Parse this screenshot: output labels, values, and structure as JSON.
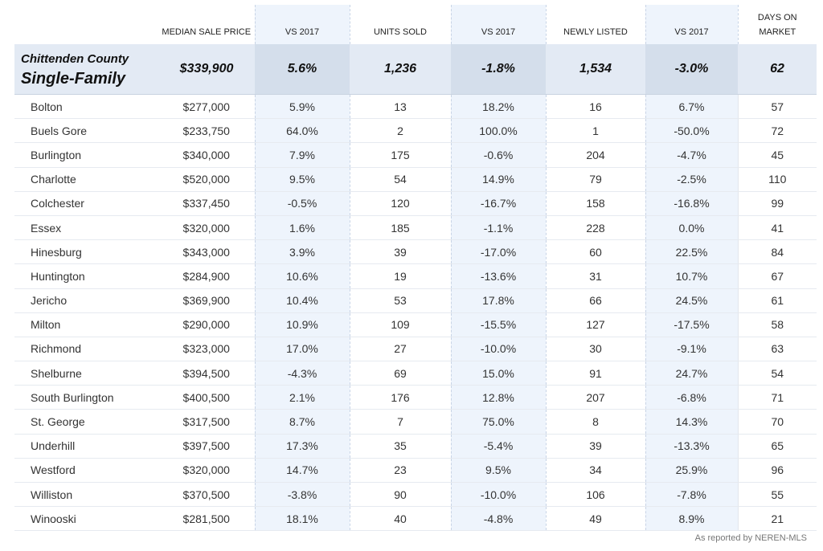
{
  "chart_data": {
    "type": "table",
    "columns": [
      "",
      "MEDIAN SALE PRICE",
      "VS 2017",
      "UNITS SOLD",
      "VS 2017",
      "NEWLY LISTED",
      "VS 2017",
      "DAYS ON MARKET"
    ],
    "total": {
      "county": "Chittenden County",
      "type": "Single-Family",
      "values": [
        "$339,900",
        "5.6%",
        "1,236",
        "-1.8%",
        "1,534",
        "-3.0%",
        "62"
      ]
    },
    "rows": [
      [
        "Bolton",
        "$277,000",
        "5.9%",
        "13",
        "18.2%",
        "16",
        "6.7%",
        "57"
      ],
      [
        "Buels Gore",
        "$233,750",
        "64.0%",
        "2",
        "100.0%",
        "1",
        "-50.0%",
        "72"
      ],
      [
        "Burlington",
        "$340,000",
        "7.9%",
        "175",
        "-0.6%",
        "204",
        "-4.7%",
        "45"
      ],
      [
        "Charlotte",
        "$520,000",
        "9.5%",
        "54",
        "14.9%",
        "79",
        "-2.5%",
        "110"
      ],
      [
        "Colchester",
        "$337,450",
        "-0.5%",
        "120",
        "-16.7%",
        "158",
        "-16.8%",
        "99"
      ],
      [
        "Essex",
        "$320,000",
        "1.6%",
        "185",
        "-1.1%",
        "228",
        "0.0%",
        "41"
      ],
      [
        "Hinesburg",
        "$343,000",
        "3.9%",
        "39",
        "-17.0%",
        "60",
        "22.5%",
        "84"
      ],
      [
        "Huntington",
        "$284,900",
        "10.6%",
        "19",
        "-13.6%",
        "31",
        "10.7%",
        "67"
      ],
      [
        "Jericho",
        "$369,900",
        "10.4%",
        "53",
        "17.8%",
        "66",
        "24.5%",
        "61"
      ],
      [
        "Milton",
        "$290,000",
        "10.9%",
        "109",
        "-15.5%",
        "127",
        "-17.5%",
        "58"
      ],
      [
        "Richmond",
        "$323,000",
        "17.0%",
        "27",
        "-10.0%",
        "30",
        "-9.1%",
        "63"
      ],
      [
        "Shelburne",
        "$394,500",
        "-4.3%",
        "69",
        "15.0%",
        "91",
        "24.7%",
        "54"
      ],
      [
        "South Burlington",
        "$400,500",
        "2.1%",
        "176",
        "12.8%",
        "207",
        "-6.8%",
        "71"
      ],
      [
        "St. George",
        "$317,500",
        "8.7%",
        "7",
        "75.0%",
        "8",
        "14.3%",
        "70"
      ],
      [
        "Underhill",
        "$397,500",
        "17.3%",
        "35",
        "-5.4%",
        "39",
        "-13.3%",
        "65"
      ],
      [
        "Westford",
        "$320,000",
        "14.7%",
        "23",
        "9.5%",
        "34",
        "25.9%",
        "96"
      ],
      [
        "Williston",
        "$370,500",
        "-3.8%",
        "90",
        "-10.0%",
        "106",
        "-7.8%",
        "55"
      ],
      [
        "Winooski",
        "$281,500",
        "18.1%",
        "40",
        "-4.8%",
        "49",
        "8.9%",
        "21"
      ]
    ]
  },
  "footer": "As reported by NEREN-MLS",
  "colors": {
    "shaded_column": "#eef4fc",
    "total_row": "#e3eaf4"
  }
}
